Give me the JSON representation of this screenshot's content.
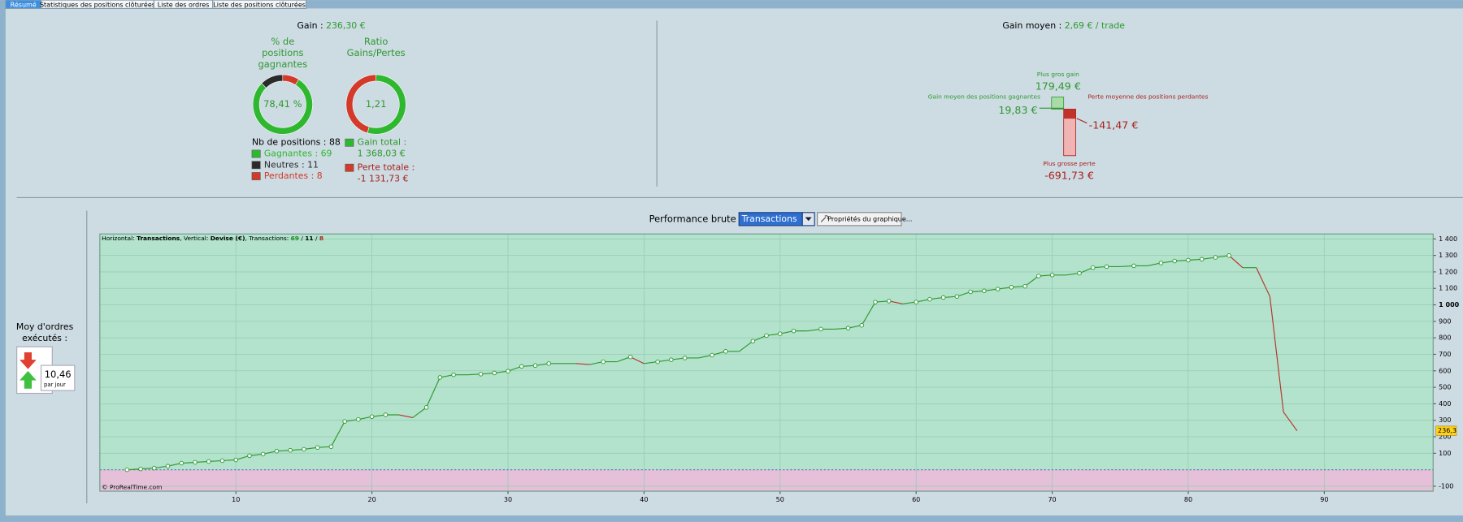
{
  "tabs": [
    "Résumé",
    "Statistiques des positions clôturées",
    "Liste des ordres",
    "Liste des positions clôturées"
  ],
  "summary": {
    "gain_label": "Gain :",
    "gain_value": "236,30 €",
    "win_donut": {
      "title_lines": [
        "% de",
        "positions",
        "gagnantes"
      ],
      "center": "78,41 %",
      "total_label": "Nb de positions :",
      "total": 88,
      "segments": [
        {
          "name": "Gagnantes :",
          "value": 69,
          "color": "#2fb82f"
        },
        {
          "name": "Neutres :",
          "value": 11,
          "color": "#2b2b2b"
        },
        {
          "name": "Perdantes :",
          "value": 8,
          "color": "#d23a2a"
        }
      ]
    },
    "ratio_donut": {
      "title_lines": [
        "Ratio",
        "Gains/Pertes"
      ],
      "center": "1,21",
      "segments": [
        {
          "name": "Gain total :",
          "value": 1368.03,
          "label": "1 368,03 €",
          "color": "#2fb82f"
        },
        {
          "name": "Perte totale :",
          "value": -1131.73,
          "label": "-1 131,73 €",
          "color": "#d23a2a"
        }
      ]
    }
  },
  "averages": {
    "title_label": "Gain moyen :",
    "title_value": "2,69 € / trade",
    "max_gain": {
      "label": "Plus gros gain",
      "value": 179.49,
      "text": "179,49 €"
    },
    "avg_gain": {
      "label": "Gain moyen des positions gagnantes",
      "value": 19.83,
      "text": "19,83 €"
    },
    "avg_loss": {
      "label": "Perte moyenne des positions perdantes",
      "value": -141.47,
      "text": "-141,47 €"
    },
    "max_loss": {
      "label": "Plus grosse perte",
      "value": -691.73,
      "text": "-691,73 €"
    }
  },
  "orders": {
    "title_lines": [
      "Moy d'ordres",
      "exécutés :"
    ],
    "value": "10,46",
    "unit": "par jour"
  },
  "chart_data": {
    "type": "line",
    "title": "Performance brute",
    "view_select": "Transactions",
    "properties_button": "Propriétés du graphique...",
    "info_parts": [
      "Horizontal: ",
      "Transactions",
      ", Vertical: ",
      "Devise (€)",
      ", Transactions: ",
      "69",
      " / ",
      "11",
      " / ",
      "8"
    ],
    "copyright": "© ProRealTime.com",
    "x": [
      2,
      3,
      4,
      5,
      6,
      7,
      8,
      9,
      10,
      11,
      12,
      13,
      14,
      15,
      16,
      17,
      18,
      19,
      20,
      21,
      22,
      23,
      24,
      25,
      26,
      27,
      28,
      29,
      30,
      31,
      32,
      33,
      34,
      35,
      36,
      37,
      38,
      39,
      40,
      41,
      42,
      43,
      44,
      45,
      46,
      47,
      48,
      49,
      50,
      51,
      52,
      53,
      54,
      55,
      56,
      57,
      58,
      59,
      60,
      61,
      62,
      63,
      64,
      65,
      66,
      67,
      68,
      69,
      70,
      71,
      72,
      73,
      74,
      75,
      76,
      77,
      78,
      79,
      80,
      81,
      82,
      83,
      84,
      85,
      86,
      87,
      88
    ],
    "values": [
      0,
      5,
      10,
      22,
      40,
      45,
      50,
      55,
      60,
      85,
      95,
      113,
      118,
      124,
      135,
      140,
      293,
      305,
      322,
      333,
      333,
      316,
      378,
      560,
      576,
      576,
      580,
      587,
      598,
      627,
      632,
      644,
      644,
      644,
      638,
      655,
      655,
      684,
      644,
      655,
      667,
      678,
      678,
      695,
      718,
      718,
      780,
      814,
      825,
      842,
      842,
      853,
      853,
      859,
      876,
      1017,
      1023,
      1006,
      1017,
      1034,
      1045,
      1051,
      1079,
      1085,
      1096,
      1107,
      1113,
      1175,
      1181,
      1181,
      1192,
      1226,
      1232,
      1232,
      1237,
      1237,
      1254,
      1266,
      1271,
      1277,
      1288,
      1299,
      1226,
      1226,
      1051,
      350,
      236.3
    ],
    "color": "#2e9a2e",
    "loss_color": "#b8322a",
    "last_value_label": "236,3",
    "xlim": [
      0,
      98
    ],
    "ylim": [
      -130,
      1430
    ],
    "xticks": [
      10,
      20,
      30,
      40,
      50,
      60,
      70,
      80,
      90
    ],
    "yticks": [
      -100,
      100,
      200,
      300,
      400,
      500,
      600,
      700,
      800,
      900,
      {
        "value": 1000,
        "label": "1 000",
        "bold": true
      },
      {
        "value": 1100,
        "label": "1 100"
      },
      {
        "value": 1200,
        "label": "1 200"
      },
      {
        "value": 1300,
        "label": "1 300"
      },
      {
        "value": 1400,
        "label": "1 400"
      }
    ],
    "grid": true
  }
}
